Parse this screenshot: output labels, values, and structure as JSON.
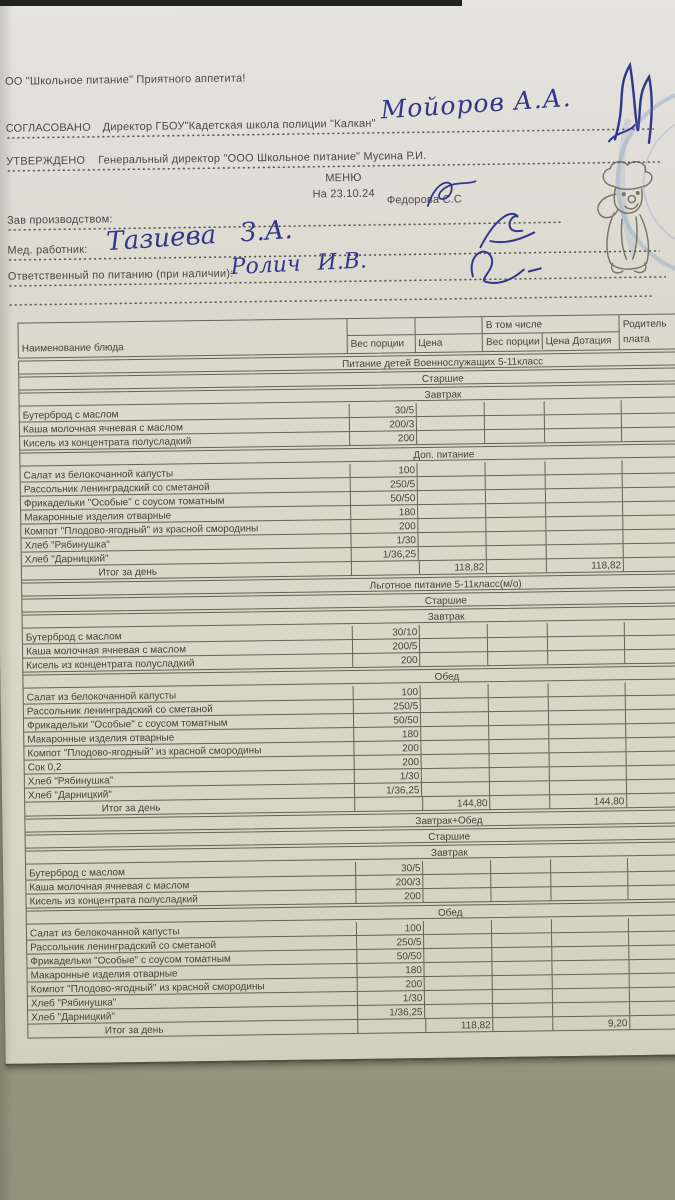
{
  "document": {
    "greeting": "ОО \"Школьное питание\" Приятного аппетита!",
    "agreed_label": "СОГЛАСОВАНО",
    "agreed_text": "Директор ГБОУ\"Кадетская школа полиции \"Калкан\"",
    "agreed_signature_name": "Мойоров А.А.",
    "approved_label": "УТВЕРЖДЕНО",
    "approved_text": "Генеральный директор \"ООО Школьное питание\" Мусина Р.И.",
    "menu_title": "МЕНЮ",
    "menu_date": "На 23.10.24",
    "prod_label": "Зав производством:",
    "prod_name": "Федорова С.С",
    "med_label": "Мед. работник:",
    "med_handwritten": "Тазиева З.А.",
    "resp_label": "Ответственный по питанию (при наличии):",
    "resp_handwritten": "Ролич И.В."
  },
  "table": {
    "header": {
      "name": "Наименование блюда",
      "portion": "Вес порции",
      "price": "Цена",
      "including": "В том числе",
      "incl_portion": "Вес порции",
      "incl_price": "Цена Дотация",
      "parent_line1": "Родитель",
      "parent_line2": "плата"
    },
    "rows": [
      {
        "t": "band",
        "label": "Питание детей Военнослужащих 5-11класс"
      },
      {
        "t": "band",
        "label": "Старшие"
      },
      {
        "t": "band",
        "label": "Завтрак"
      },
      {
        "t": "dish",
        "name": "Бутерброд с маслом",
        "portion": "30/5"
      },
      {
        "t": "dish",
        "name": "Каша молочная ячневая с маслом",
        "portion": "200/3"
      },
      {
        "t": "dish",
        "name": "Кисель из концентрата полусладкий",
        "portion": "200"
      },
      {
        "t": "band",
        "label": "Доп. питание"
      },
      {
        "t": "dish",
        "name": "Салат из белокочанной капусты",
        "portion": "100"
      },
      {
        "t": "dish",
        "name": "Рассольник ленинградский со сметаной",
        "portion": "250/5"
      },
      {
        "t": "dish",
        "name": "Фрикадельки \"Особые\" с соусом томатным",
        "portion": "50/50"
      },
      {
        "t": "dish",
        "name": "Макаронные изделия отварные",
        "portion": "180"
      },
      {
        "t": "dish",
        "name": "Компот \"Плодово-ягодный\" из красной смородины",
        "portion": "200"
      },
      {
        "t": "dish",
        "name": "Хлеб \"Рябинушка\"",
        "portion": "1/30"
      },
      {
        "t": "dish",
        "name": "Хлеб \"Дарницкий\"",
        "portion": "1/36,25"
      },
      {
        "t": "total",
        "label": "Итог за день",
        "price": "118,82",
        "subsidy": "118,82"
      },
      {
        "t": "band",
        "label": "Льготное питание 5-11класс(м/о)"
      },
      {
        "t": "band",
        "label": "Старшие"
      },
      {
        "t": "band",
        "label": "Завтрак"
      },
      {
        "t": "dish",
        "name": "Бутерброд с маслом",
        "portion": "30/10"
      },
      {
        "t": "dish",
        "name": "Каша молочная ячневая с маслом",
        "portion": "200/5"
      },
      {
        "t": "dish",
        "name": "Кисель из концентрата полусладкий",
        "portion": "200"
      },
      {
        "t": "band",
        "label": "Обед"
      },
      {
        "t": "dish",
        "name": "Салат из белокочанной капусты",
        "portion": "100"
      },
      {
        "t": "dish",
        "name": "Рассольник ленинградский со сметаной",
        "portion": "250/5"
      },
      {
        "t": "dish",
        "name": "Фрикадельки \"Особые\" с соусом томатным",
        "portion": "50/50"
      },
      {
        "t": "dish",
        "name": "Макаронные изделия отварные",
        "portion": "180"
      },
      {
        "t": "dish",
        "name": "Компот \"Плодово-ягодный\" из красной смородины",
        "portion": "200"
      },
      {
        "t": "dish",
        "name": "Сок 0,2",
        "portion": "200"
      },
      {
        "t": "dish",
        "name": "Хлеб \"Рябинушка\"",
        "portion": "1/30"
      },
      {
        "t": "dish",
        "name": "Хлеб \"Дарницкий\"",
        "portion": "1/36,25"
      },
      {
        "t": "total",
        "label": "Итог за день",
        "price": "144,80",
        "subsidy": "144,80"
      },
      {
        "t": "band",
        "label": "Завтрак+Обед"
      },
      {
        "t": "band",
        "label": "Старшие"
      },
      {
        "t": "band",
        "label": "Завтрак"
      },
      {
        "t": "dish",
        "name": "Бутерброд с маслом",
        "portion": "30/5"
      },
      {
        "t": "dish",
        "name": "Каша молочная ячневая с маслом",
        "portion": "200/3"
      },
      {
        "t": "dish",
        "name": "Кисель из концентрата полусладкий",
        "portion": "200"
      },
      {
        "t": "band",
        "label": "Обед"
      },
      {
        "t": "dish",
        "name": "Салат из белокочанной капусты",
        "portion": "100"
      },
      {
        "t": "dish",
        "name": "Рассольник ленинградский со сметаной",
        "portion": "250/5"
      },
      {
        "t": "dish",
        "name": "Фрикадельки \"Особые\" с соусом томатным",
        "portion": "50/50"
      },
      {
        "t": "dish",
        "name": "Макаронные изделия отварные",
        "portion": "180"
      },
      {
        "t": "dish",
        "name": "Компот \"Плодово-ягодный\" из красной смородины",
        "portion": "200"
      },
      {
        "t": "dish",
        "name": "Хлеб \"Рябинушка\"",
        "portion": "1/30"
      },
      {
        "t": "dish",
        "name": "Хлеб \"Дарницкий\"",
        "portion": "1/36,25"
      },
      {
        "t": "total",
        "label": "Итог за день",
        "price": "118,82",
        "subsidy": "9,20"
      }
    ]
  },
  "colors": {
    "ink": "#33368a",
    "stamp_blue": "#5d7fc0",
    "paper": "#d8d8c8",
    "desk": "#9c9c83"
  }
}
